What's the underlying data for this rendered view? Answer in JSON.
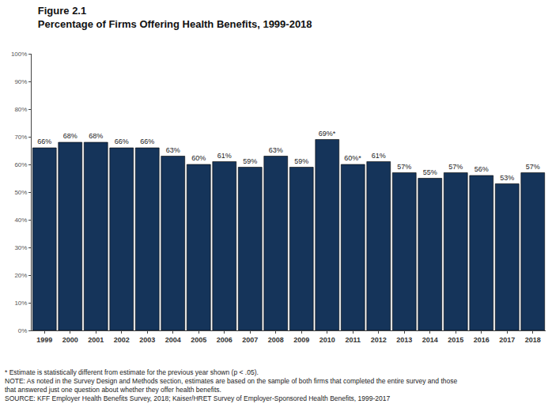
{
  "chart_data": {
    "type": "bar",
    "title": "Figure 2.1",
    "subtitle": "Percentage of Firms Offering Health Benefits, 1999-2018",
    "categories": [
      "1999",
      "2000",
      "2001",
      "2002",
      "2003",
      "2004",
      "2005",
      "2006",
      "2007",
      "2008",
      "2009",
      "2010",
      "2011",
      "2012",
      "2013",
      "2014",
      "2015",
      "2016",
      "2017",
      "2018"
    ],
    "values": [
      66,
      68,
      68,
      66,
      66,
      63,
      60,
      61,
      59,
      63,
      59,
      69,
      60,
      61,
      57,
      55,
      57,
      56,
      53,
      57
    ],
    "value_labels": [
      "66%",
      "68%",
      "68%",
      "66%",
      "66%",
      "63%",
      "60%",
      "61%",
      "59%",
      "63%",
      "59%",
      "69%*",
      "60%*",
      "61%",
      "57%",
      "55%",
      "57%",
      "56%",
      "53%",
      "57%"
    ],
    "color": "#15345a",
    "ylim": [
      0,
      100
    ],
    "yticks": [
      {
        "value": 0,
        "label": "0%"
      },
      {
        "value": 10,
        "label": "10%"
      },
      {
        "value": 20,
        "label": "20%"
      },
      {
        "value": 30,
        "label": "30%"
      },
      {
        "value": 40,
        "label": "40%"
      },
      {
        "value": 50,
        "label": "50%"
      },
      {
        "value": 60,
        "label": "60%"
      },
      {
        "value": 70,
        "label": "70%"
      },
      {
        "value": 80,
        "label": "80%"
      },
      {
        "value": 90,
        "label": "90%"
      },
      {
        "value": 100,
        "label": "100%"
      }
    ],
    "grid": false,
    "data_labels": true,
    "annotations": [
      "* Estimate is statistically different from estimate for the previous year shown (p < .05).",
      "NOTE: As noted in the Survey Design and Methods section, estimates are based on the sample of both firms that completed the entire survey and those",
      "that answered just one question about whether they offer health benefits.",
      "SOURCE: KFF Employer Health Benefits Survey, 2018; Kaiser/HRET Survey of Employer-Sponsored Health Benefits, 1999-2017"
    ]
  }
}
